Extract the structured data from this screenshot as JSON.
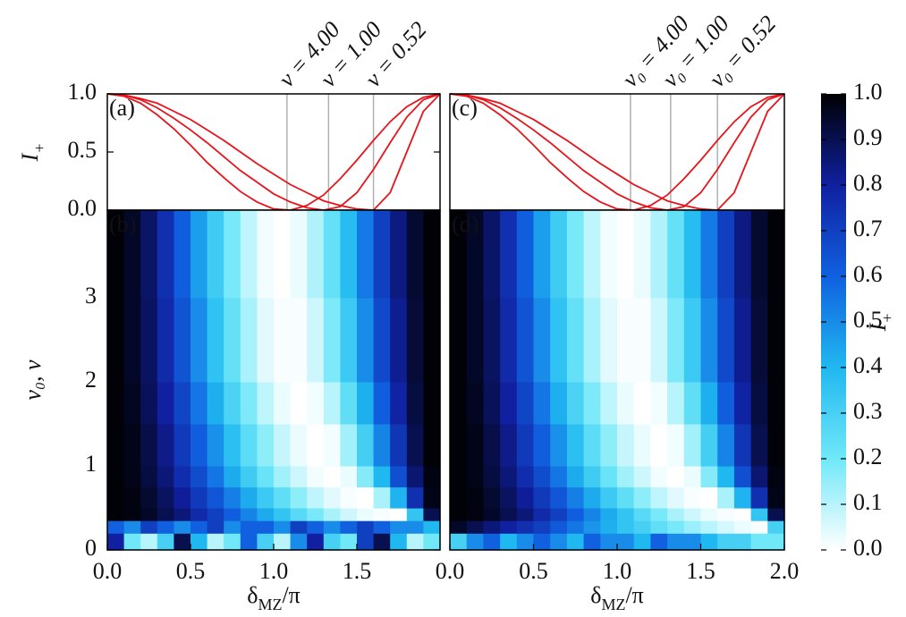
{
  "chart_data": [
    {
      "type": "line",
      "label": "(a)",
      "ylabel": [
        "I",
        "+"
      ],
      "xlim": [
        0,
        2
      ],
      "ylim": [
        0,
        1
      ],
      "yticks": [
        {
          "value": 0,
          "label": "0.0"
        },
        {
          "value": 0.5,
          "label": "0.5"
        },
        {
          "value": 1,
          "label": "1.0"
        }
      ],
      "x": [
        0,
        0.1,
        0.2,
        0.3,
        0.4,
        0.5,
        0.6,
        0.7,
        0.8,
        0.9,
        1.0,
        1.1,
        1.2,
        1.3,
        1.4,
        1.5,
        1.6,
        1.7,
        1.8,
        1.9,
        2.0
      ],
      "series": [
        {
          "color": "#e8141b",
          "values": [
            1,
            0.98,
            0.92,
            0.82,
            0.7,
            0.56,
            0.41,
            0.28,
            0.16,
            0.07,
            0.01,
            0.0,
            0.04,
            0.13,
            0.27,
            0.43,
            0.6,
            0.76,
            0.89,
            0.97,
            1
          ]
        },
        {
          "color": "#e8141b",
          "values": [
            1,
            0.99,
            0.95,
            0.88,
            0.79,
            0.69,
            0.58,
            0.46,
            0.34,
            0.24,
            0.14,
            0.07,
            0.02,
            0.0,
            0.03,
            0.15,
            0.35,
            0.58,
            0.8,
            0.95,
            1
          ]
        },
        {
          "color": "#e8141b",
          "values": [
            1,
            0.99,
            0.96,
            0.92,
            0.85,
            0.78,
            0.69,
            0.6,
            0.5,
            0.4,
            0.31,
            0.22,
            0.15,
            0.08,
            0.04,
            0.01,
            0,
            0.15,
            0.5,
            0.85,
            1
          ]
        }
      ],
      "vlines": [
        {
          "x": 1.08,
          "label": "ν = 4.00"
        },
        {
          "x": 1.33,
          "label": "ν = 1.00"
        },
        {
          "x": 1.6,
          "label": "ν = 0.52"
        }
      ]
    },
    {
      "type": "heatmap",
      "label": "(b)",
      "ylabel": "ν₀, ν",
      "xlabel": [
        "δ",
        "MZ",
        "/π"
      ],
      "xlim": [
        0,
        2
      ],
      "ylim": [
        0,
        4.04
      ],
      "xticks": [
        {
          "value": 0,
          "label": "0.0"
        },
        {
          "value": 0.5,
          "label": "0.5"
        },
        {
          "value": 1,
          "label": "1.0"
        },
        {
          "value": 1.5,
          "label": "1.5"
        }
      ],
      "yticks": [
        0,
        1,
        2,
        3
      ],
      "xbins": [
        0,
        0.1,
        0.2,
        0.3,
        0.4,
        0.5,
        0.6,
        0.7,
        0.8,
        0.9,
        1.0,
        1.1,
        1.2,
        1.3,
        1.4,
        1.5,
        1.6,
        1.7,
        1.8,
        1.9,
        2.0
      ],
      "ybins": [
        0,
        0.2,
        0.35,
        0.5,
        0.75,
        1,
        1.5,
        2,
        3,
        4.04
      ],
      "z": [
        [
          0.8,
          0.2,
          0.1,
          0.3,
          0.9,
          0.4,
          0.1,
          0.2,
          0.6,
          0.3,
          0.1,
          0.5,
          0.8,
          0.3,
          0.2,
          0.7,
          0.9,
          0.4,
          0.1,
          0.2
        ],
        [
          0.6,
          0.5,
          0.7,
          0.6,
          0.5,
          0.6,
          0.7,
          0.5,
          0.6,
          0.6,
          0.5,
          0.7,
          0.6,
          0.5,
          0.6,
          0.7,
          0.6,
          0.5,
          0.5,
          0.4
        ],
        [
          0.99,
          0.98,
          0.95,
          0.9,
          0.85,
          0.77,
          0.7,
          0.61,
          0.52,
          0.43,
          0.35,
          0.26,
          0.19,
          0.12,
          0.07,
          0.03,
          0.01,
          0,
          0.35,
          0.9
        ],
        [
          0.99,
          0.98,
          0.94,
          0.88,
          0.81,
          0.72,
          0.63,
          0.53,
          0.43,
          0.33,
          0.24,
          0.16,
          0.09,
          0.04,
          0.01,
          0,
          0.12,
          0.41,
          0.75,
          0.97
        ],
        [
          0.99,
          0.97,
          0.92,
          0.85,
          0.76,
          0.66,
          0.55,
          0.43,
          0.32,
          0.22,
          0.13,
          0.07,
          0.02,
          0,
          0.03,
          0.17,
          0.4,
          0.65,
          0.86,
          0.98
        ],
        [
          0.99,
          0.97,
          0.91,
          0.83,
          0.72,
          0.61,
          0.49,
          0.37,
          0.25,
          0.16,
          0.08,
          0.03,
          0,
          0.02,
          0.13,
          0.31,
          0.52,
          0.73,
          0.9,
          0.99
        ],
        [
          0.99,
          0.96,
          0.89,
          0.8,
          0.68,
          0.55,
          0.42,
          0.29,
          0.18,
          0.09,
          0.03,
          0,
          0.02,
          0.1,
          0.24,
          0.42,
          0.61,
          0.79,
          0.92,
          0.99
        ],
        [
          0.99,
          0.95,
          0.88,
          0.77,
          0.64,
          0.5,
          0.36,
          0.23,
          0.12,
          0.04,
          0.01,
          0.01,
          0.07,
          0.18,
          0.33,
          0.5,
          0.67,
          0.82,
          0.93,
          0.99
        ],
        [
          0.99,
          0.95,
          0.87,
          0.75,
          0.61,
          0.46,
          0.32,
          0.19,
          0.09,
          0.02,
          0,
          0.03,
          0.11,
          0.23,
          0.38,
          0.54,
          0.7,
          0.84,
          0.94,
          0.99
        ]
      ]
    },
    {
      "type": "line",
      "label": "(c)",
      "xlim": [
        0,
        2
      ],
      "ylim": [
        0,
        1
      ],
      "x": [
        0,
        0.1,
        0.2,
        0.3,
        0.4,
        0.5,
        0.6,
        0.7,
        0.8,
        0.9,
        1.0,
        1.1,
        1.2,
        1.3,
        1.4,
        1.5,
        1.6,
        1.7,
        1.8,
        1.9,
        2.0
      ],
      "series": [
        {
          "color": "#e8141b",
          "values": [
            1,
            0.98,
            0.92,
            0.82,
            0.7,
            0.56,
            0.41,
            0.28,
            0.16,
            0.07,
            0.01,
            0.0,
            0.04,
            0.13,
            0.27,
            0.43,
            0.6,
            0.76,
            0.89,
            0.97,
            1
          ]
        },
        {
          "color": "#e8141b",
          "values": [
            1,
            0.99,
            0.95,
            0.88,
            0.79,
            0.69,
            0.58,
            0.46,
            0.34,
            0.24,
            0.14,
            0.07,
            0.02,
            0.0,
            0.03,
            0.15,
            0.35,
            0.58,
            0.8,
            0.95,
            1
          ]
        },
        {
          "color": "#e8141b",
          "values": [
            1,
            0.99,
            0.96,
            0.92,
            0.85,
            0.78,
            0.69,
            0.6,
            0.5,
            0.4,
            0.31,
            0.22,
            0.15,
            0.08,
            0.04,
            0.01,
            0,
            0.15,
            0.5,
            0.85,
            1
          ]
        }
      ],
      "vlines": [
        {
          "x": 1.08,
          "label": "ν₀ = 4.00"
        },
        {
          "x": 1.32,
          "label": "ν₀ = 1.00"
        },
        {
          "x": 1.6,
          "label": "ν₀ = 0.52"
        }
      ]
    },
    {
      "type": "heatmap",
      "label": "(d)",
      "xlabel": [
        "δ",
        "MZ",
        "/π"
      ],
      "xlim": [
        0,
        2
      ],
      "ylim": [
        0,
        4.04
      ],
      "xticks": [
        {
          "value": 0,
          "label": "0.0"
        },
        {
          "value": 0.5,
          "label": "0.5"
        },
        {
          "value": 1,
          "label": "1.0"
        },
        {
          "value": 1.5,
          "label": "1.5"
        },
        {
          "value": 2,
          "label": "2.0"
        }
      ],
      "xbins": [
        0,
        0.1,
        0.2,
        0.3,
        0.4,
        0.5,
        0.6,
        0.7,
        0.8,
        0.9,
        1.0,
        1.1,
        1.2,
        1.3,
        1.4,
        1.5,
        1.6,
        1.7,
        1.8,
        1.9,
        2.0
      ],
      "ybins": [
        0,
        0.2,
        0.35,
        0.5,
        0.75,
        1,
        1.5,
        2,
        3,
        4.04
      ],
      "z": [
        [
          0.3,
          0.5,
          0.6,
          0.4,
          0.5,
          0.6,
          0.5,
          0.4,
          0.6,
          0.5,
          0.5,
          0.4,
          0.6,
          0.5,
          0.5,
          0.4,
          0.3,
          0.3,
          0.2,
          0.2
        ],
        [
          0.95,
          0.9,
          0.85,
          0.8,
          0.75,
          0.7,
          0.62,
          0.55,
          0.48,
          0.42,
          0.35,
          0.3,
          0.24,
          0.19,
          0.14,
          0.1,
          0.06,
          0.03,
          0.01,
          0.3
        ],
        [
          0.99,
          0.98,
          0.95,
          0.9,
          0.85,
          0.77,
          0.7,
          0.61,
          0.52,
          0.43,
          0.35,
          0.26,
          0.19,
          0.12,
          0.07,
          0.03,
          0.01,
          0,
          0.35,
          0.9
        ],
        [
          0.99,
          0.98,
          0.94,
          0.88,
          0.81,
          0.72,
          0.63,
          0.53,
          0.43,
          0.33,
          0.24,
          0.16,
          0.09,
          0.04,
          0.01,
          0,
          0.12,
          0.41,
          0.75,
          0.97
        ],
        [
          0.99,
          0.97,
          0.92,
          0.85,
          0.76,
          0.66,
          0.55,
          0.43,
          0.32,
          0.22,
          0.13,
          0.07,
          0.02,
          0,
          0.03,
          0.17,
          0.4,
          0.65,
          0.86,
          0.98
        ],
        [
          0.99,
          0.97,
          0.91,
          0.83,
          0.72,
          0.61,
          0.49,
          0.37,
          0.25,
          0.16,
          0.08,
          0.03,
          0,
          0.02,
          0.13,
          0.31,
          0.52,
          0.73,
          0.9,
          0.99
        ],
        [
          0.99,
          0.96,
          0.89,
          0.8,
          0.68,
          0.55,
          0.42,
          0.29,
          0.18,
          0.09,
          0.03,
          0,
          0.02,
          0.1,
          0.24,
          0.42,
          0.61,
          0.79,
          0.92,
          0.99
        ],
        [
          0.99,
          0.95,
          0.88,
          0.77,
          0.64,
          0.5,
          0.36,
          0.23,
          0.12,
          0.04,
          0.01,
          0.01,
          0.07,
          0.18,
          0.33,
          0.5,
          0.67,
          0.82,
          0.93,
          0.99
        ],
        [
          0.99,
          0.95,
          0.87,
          0.75,
          0.61,
          0.46,
          0.32,
          0.19,
          0.09,
          0.02,
          0,
          0.03,
          0.11,
          0.23,
          0.38,
          0.54,
          0.7,
          0.84,
          0.94,
          0.99
        ]
      ]
    },
    {
      "type": "colorbar",
      "ylabel": [
        "I",
        "+"
      ],
      "ylim": [
        0,
        1
      ],
      "colors": [
        "#ffffff",
        "#70e8f8",
        "#20b8f0",
        "#1060e0",
        "#1020a0",
        "#000000"
      ],
      "yticks": [
        {
          "value": 0,
          "label": "0.0"
        },
        {
          "value": 0.1,
          "label": "0.1"
        },
        {
          "value": 0.2,
          "label": "0.2"
        },
        {
          "value": 0.3,
          "label": "0.3"
        },
        {
          "value": 0.4,
          "label": "0.4"
        },
        {
          "value": 0.5,
          "label": "0.5"
        },
        {
          "value": 0.6,
          "label": "0.6"
        },
        {
          "value": 0.7,
          "label": "0.7"
        },
        {
          "value": 0.8,
          "label": "0.8"
        },
        {
          "value": 0.9,
          "label": "0.9"
        },
        {
          "value": 1,
          "label": "1.0"
        }
      ]
    }
  ]
}
